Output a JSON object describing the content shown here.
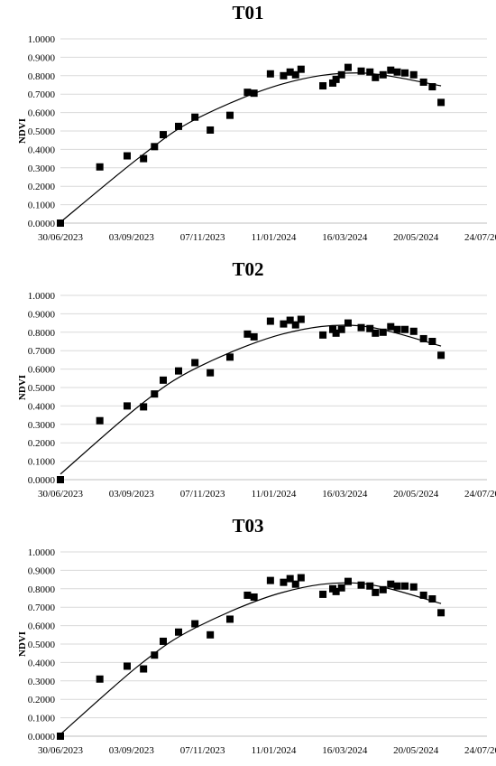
{
  "chart_data": [
    {
      "type": "scatter",
      "title": "T01",
      "ylabel": "NDVI",
      "xlabel": "",
      "ylim": [
        0,
        1
      ],
      "yticks": [
        "0.0000",
        "0.1000",
        "0.2000",
        "0.3000",
        "0.4000",
        "0.5000",
        "0.6000",
        "0.7000",
        "0.8000",
        "0.9000",
        "1.0000"
      ],
      "xticks": [
        "30/06/2023",
        "03/09/2023",
        "07/11/2023",
        "11/01/2024",
        "16/03/2024",
        "20/05/2024",
        "24/07/2024"
      ],
      "xlim": [
        "30/06/2023",
        "24/07/2024"
      ],
      "grid": "horizontal",
      "trendline": "polynomial",
      "points": [
        {
          "x": "30/06/2023",
          "y": 0.0
        },
        {
          "x": "05/08/2023",
          "y": 0.305
        },
        {
          "x": "30/08/2023",
          "y": 0.365
        },
        {
          "x": "14/09/2023",
          "y": 0.35
        },
        {
          "x": "24/09/2023",
          "y": 0.415
        },
        {
          "x": "02/10/2023",
          "y": 0.48
        },
        {
          "x": "16/10/2023",
          "y": 0.525
        },
        {
          "x": "31/10/2023",
          "y": 0.575
        },
        {
          "x": "14/11/2023",
          "y": 0.505
        },
        {
          "x": "02/12/2023",
          "y": 0.585
        },
        {
          "x": "18/12/2023",
          "y": 0.71
        },
        {
          "x": "24/12/2023",
          "y": 0.705
        },
        {
          "x": "08/01/2024",
          "y": 0.81
        },
        {
          "x": "20/01/2024",
          "y": 0.8
        },
        {
          "x": "26/01/2024",
          "y": 0.82
        },
        {
          "x": "31/01/2024",
          "y": 0.805
        },
        {
          "x": "05/02/2024",
          "y": 0.835
        },
        {
          "x": "25/02/2024",
          "y": 0.745
        },
        {
          "x": "05/03/2024",
          "y": 0.76
        },
        {
          "x": "08/03/2024",
          "y": 0.78
        },
        {
          "x": "13/03/2024",
          "y": 0.805
        },
        {
          "x": "19/03/2024",
          "y": 0.845
        },
        {
          "x": "31/03/2024",
          "y": 0.825
        },
        {
          "x": "08/04/2024",
          "y": 0.82
        },
        {
          "x": "13/04/2024",
          "y": 0.79
        },
        {
          "x": "20/04/2024",
          "y": 0.805
        },
        {
          "x": "27/04/2024",
          "y": 0.83
        },
        {
          "x": "03/05/2024",
          "y": 0.82
        },
        {
          "x": "10/05/2024",
          "y": 0.815
        },
        {
          "x": "18/05/2024",
          "y": 0.805
        },
        {
          "x": "27/05/2024",
          "y": 0.765
        },
        {
          "x": "04/06/2024",
          "y": 0.74
        },
        {
          "x": "12/06/2024",
          "y": 0.655
        }
      ],
      "trend": [
        {
          "x": "30/06/2023",
          "y": 0.005
        },
        {
          "x": "11/09/2023",
          "y": 0.36
        },
        {
          "x": "01/11/2023",
          "y": 0.565
        },
        {
          "x": "19/01/2024",
          "y": 0.755
        },
        {
          "x": "29/03/2024",
          "y": 0.815
        },
        {
          "x": "12/06/2024",
          "y": 0.745
        }
      ]
    },
    {
      "type": "scatter",
      "title": "T02",
      "ylabel": "NDVI",
      "xlabel": "",
      "ylim": [
        0,
        1
      ],
      "yticks": [
        "0.0000",
        "0.1000",
        "0.2000",
        "0.3000",
        "0.4000",
        "0.5000",
        "0.6000",
        "0.7000",
        "0.8000",
        "0.9000",
        "1.0000"
      ],
      "xticks": [
        "30/06/2023",
        "03/09/2023",
        "07/11/2023",
        "11/01/2024",
        "16/03/2024",
        "20/05/2024",
        "24/07/2024"
      ],
      "xlim": [
        "30/06/2023",
        "24/07/2024"
      ],
      "grid": "horizontal",
      "trendline": "polynomial",
      "points": [
        {
          "x": "30/06/2023",
          "y": 0.0
        },
        {
          "x": "05/08/2023",
          "y": 0.32
        },
        {
          "x": "30/08/2023",
          "y": 0.4
        },
        {
          "x": "14/09/2023",
          "y": 0.395
        },
        {
          "x": "24/09/2023",
          "y": 0.465
        },
        {
          "x": "02/10/2023",
          "y": 0.54
        },
        {
          "x": "16/10/2023",
          "y": 0.59
        },
        {
          "x": "31/10/2023",
          "y": 0.635
        },
        {
          "x": "14/11/2023",
          "y": 0.58
        },
        {
          "x": "02/12/2023",
          "y": 0.665
        },
        {
          "x": "18/12/2023",
          "y": 0.79
        },
        {
          "x": "24/12/2023",
          "y": 0.775
        },
        {
          "x": "08/01/2024",
          "y": 0.86
        },
        {
          "x": "20/01/2024",
          "y": 0.845
        },
        {
          "x": "26/01/2024",
          "y": 0.865
        },
        {
          "x": "31/01/2024",
          "y": 0.84
        },
        {
          "x": "05/02/2024",
          "y": 0.87
        },
        {
          "x": "25/02/2024",
          "y": 0.785
        },
        {
          "x": "05/03/2024",
          "y": 0.815
        },
        {
          "x": "08/03/2024",
          "y": 0.795
        },
        {
          "x": "13/03/2024",
          "y": 0.815
        },
        {
          "x": "19/03/2024",
          "y": 0.85
        },
        {
          "x": "31/03/2024",
          "y": 0.825
        },
        {
          "x": "08/04/2024",
          "y": 0.82
        },
        {
          "x": "13/04/2024",
          "y": 0.795
        },
        {
          "x": "20/04/2024",
          "y": 0.8
        },
        {
          "x": "27/04/2024",
          "y": 0.83
        },
        {
          "x": "03/05/2024",
          "y": 0.815
        },
        {
          "x": "10/05/2024",
          "y": 0.815
        },
        {
          "x": "18/05/2024",
          "y": 0.805
        },
        {
          "x": "27/05/2024",
          "y": 0.765
        },
        {
          "x": "04/06/2024",
          "y": 0.75
        },
        {
          "x": "12/06/2024",
          "y": 0.675
        }
      ],
      "trend": [
        {
          "x": "30/06/2023",
          "y": 0.03
        },
        {
          "x": "11/09/2023",
          "y": 0.405
        },
        {
          "x": "01/11/2023",
          "y": 0.605
        },
        {
          "x": "19/01/2024",
          "y": 0.79
        },
        {
          "x": "29/03/2024",
          "y": 0.835
        },
        {
          "x": "12/06/2024",
          "y": 0.725
        }
      ]
    },
    {
      "type": "scatter",
      "title": "T03",
      "ylabel": "NDVI",
      "xlabel": "",
      "ylim": [
        0,
        1
      ],
      "yticks": [
        "0.0000",
        "0.1000",
        "0.2000",
        "0.3000",
        "0.4000",
        "0.5000",
        "0.6000",
        "0.7000",
        "0.8000",
        "0.9000",
        "1.0000"
      ],
      "xticks": [
        "30/06/2023",
        "03/09/2023",
        "07/11/2023",
        "11/01/2024",
        "16/03/2024",
        "20/05/2024",
        "24/07/2024"
      ],
      "xlim": [
        "30/06/2023",
        "24/07/2024"
      ],
      "grid": "horizontal",
      "trendline": "polynomial",
      "points": [
        {
          "x": "30/06/2023",
          "y": 0.0
        },
        {
          "x": "05/08/2023",
          "y": 0.31
        },
        {
          "x": "30/08/2023",
          "y": 0.38
        },
        {
          "x": "14/09/2023",
          "y": 0.365
        },
        {
          "x": "24/09/2023",
          "y": 0.44
        },
        {
          "x": "02/10/2023",
          "y": 0.515
        },
        {
          "x": "16/10/2023",
          "y": 0.565
        },
        {
          "x": "31/10/2023",
          "y": 0.61
        },
        {
          "x": "14/11/2023",
          "y": 0.55
        },
        {
          "x": "02/12/2023",
          "y": 0.635
        },
        {
          "x": "18/12/2023",
          "y": 0.765
        },
        {
          "x": "24/12/2023",
          "y": 0.755
        },
        {
          "x": "08/01/2024",
          "y": 0.845
        },
        {
          "x": "20/01/2024",
          "y": 0.835
        },
        {
          "x": "26/01/2024",
          "y": 0.855
        },
        {
          "x": "31/01/2024",
          "y": 0.825
        },
        {
          "x": "05/02/2024",
          "y": 0.86
        },
        {
          "x": "25/02/2024",
          "y": 0.77
        },
        {
          "x": "05/03/2024",
          "y": 0.8
        },
        {
          "x": "08/03/2024",
          "y": 0.785
        },
        {
          "x": "13/03/2024",
          "y": 0.805
        },
        {
          "x": "19/03/2024",
          "y": 0.84
        },
        {
          "x": "31/03/2024",
          "y": 0.82
        },
        {
          "x": "08/04/2024",
          "y": 0.815
        },
        {
          "x": "13/04/2024",
          "y": 0.78
        },
        {
          "x": "20/04/2024",
          "y": 0.795
        },
        {
          "x": "27/04/2024",
          "y": 0.825
        },
        {
          "x": "03/05/2024",
          "y": 0.815
        },
        {
          "x": "10/05/2024",
          "y": 0.815
        },
        {
          "x": "18/05/2024",
          "y": 0.81
        },
        {
          "x": "27/05/2024",
          "y": 0.765
        },
        {
          "x": "04/06/2024",
          "y": 0.745
        },
        {
          "x": "12/06/2024",
          "y": 0.67
        }
      ],
      "trend": [
        {
          "x": "30/06/2023",
          "y": 0.01
        },
        {
          "x": "11/09/2023",
          "y": 0.39
        },
        {
          "x": "01/11/2023",
          "y": 0.59
        },
        {
          "x": "19/01/2024",
          "y": 0.78
        },
        {
          "x": "29/03/2024",
          "y": 0.83
        },
        {
          "x": "12/06/2024",
          "y": 0.72
        }
      ]
    }
  ]
}
